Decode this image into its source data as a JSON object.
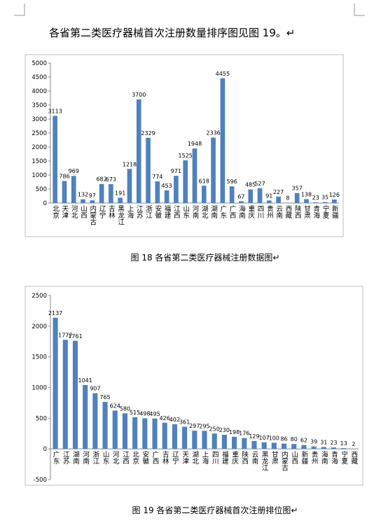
{
  "intro": "各省第二类医疗器械首次注册数量排序图见图 19。↵",
  "chart_data": [
    {
      "type": "bar",
      "caption": "图 18  各省第二类医疗器械注册数据图↵",
      "color": "#4f81bd",
      "grid": false,
      "categories": [
        "北京",
        "天津",
        "河北",
        "山西",
        "内蒙古",
        "辽宁",
        "吉林",
        "黑龙江",
        "上海",
        "江苏",
        "浙江",
        "安徽",
        "福建",
        "江西",
        "山东",
        "河南",
        "湖北",
        "湖南",
        "广东",
        "广西",
        "海南",
        "重庆",
        "四川",
        "贵州",
        "云南",
        "西藏",
        "陕西",
        "甘肃",
        "青海",
        "宁夏",
        "新疆"
      ],
      "values": [
        3113,
        786,
        969,
        132,
        97,
        682,
        673,
        191,
        1218,
        3700,
        2329,
        774,
        453,
        971,
        1525,
        1948,
        618,
        2336,
        4455,
        596,
        67,
        485,
        527,
        91,
        227,
        8,
        357,
        138,
        23,
        35,
        126
      ],
      "ylim": [
        0,
        5000
      ],
      "yticks": [
        0,
        500,
        1000,
        1500,
        2000,
        2500,
        3000,
        3500,
        4000,
        4500,
        5000
      ]
    },
    {
      "type": "bar",
      "caption": "图 19  各省第二类医疗器械首次注册排位图↵",
      "color": "#4f81bd",
      "grid": false,
      "categories": [
        "广东",
        "江苏",
        "湖南",
        "河南",
        "浙江",
        "山东",
        "河北",
        "江西",
        "北京",
        "安徽",
        "广西",
        "吉林",
        "辽宁",
        "天津",
        "湖北",
        "上海",
        "四川",
        "福建",
        "重庆",
        "陕西",
        "云南",
        "黑龙江",
        "甘肃",
        "内蒙古",
        "山西",
        "新疆",
        "贵州",
        "海南",
        "青海",
        "宁夏",
        "西藏"
      ],
      "values": [
        2137,
        1777,
        1761,
        1041,
        907,
        765,
        624,
        580,
        515,
        498,
        495,
        426,
        402,
        361,
        297,
        295,
        250,
        230,
        198,
        176,
        129,
        107,
        100,
        86,
        80,
        62,
        39,
        31,
        23,
        13,
        2
      ],
      "ylim": [
        -500,
        2500
      ],
      "yticks": [
        -500,
        0,
        500,
        1000,
        1500,
        2000,
        2500
      ]
    }
  ]
}
